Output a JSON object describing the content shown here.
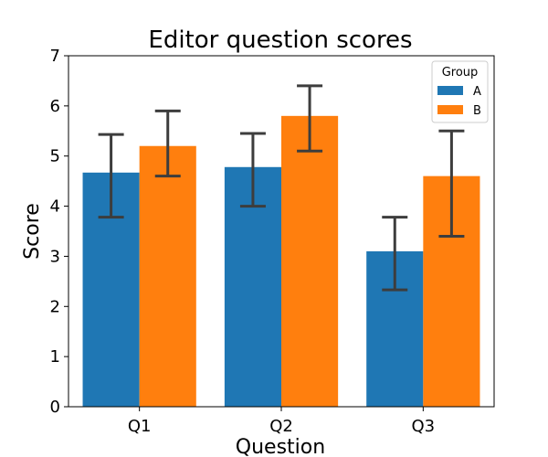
{
  "chart_data": {
    "type": "bar",
    "title": "Editor question scores",
    "xlabel": "Question",
    "ylabel": "Score",
    "ylim": [
      0,
      7
    ],
    "yticks": [
      "0",
      "1",
      "2",
      "3",
      "4",
      "5",
      "6",
      "7"
    ],
    "categories": [
      "Q1",
      "Q2",
      "Q3"
    ],
    "legend": {
      "title": "Group",
      "placement": "top-right"
    },
    "grid": false,
    "series": [
      {
        "name": "A",
        "color": "#1f77b4",
        "values": [
          4.67,
          4.78,
          3.1
        ],
        "err_low": [
          3.78,
          4.0,
          2.33
        ],
        "err_high": [
          5.43,
          5.45,
          3.78
        ]
      },
      {
        "name": "B",
        "color": "#ff7f0e",
        "values": [
          5.2,
          5.8,
          4.6
        ],
        "err_low": [
          4.6,
          5.1,
          3.4
        ],
        "err_high": [
          5.9,
          6.4,
          5.5
        ]
      }
    ]
  }
}
